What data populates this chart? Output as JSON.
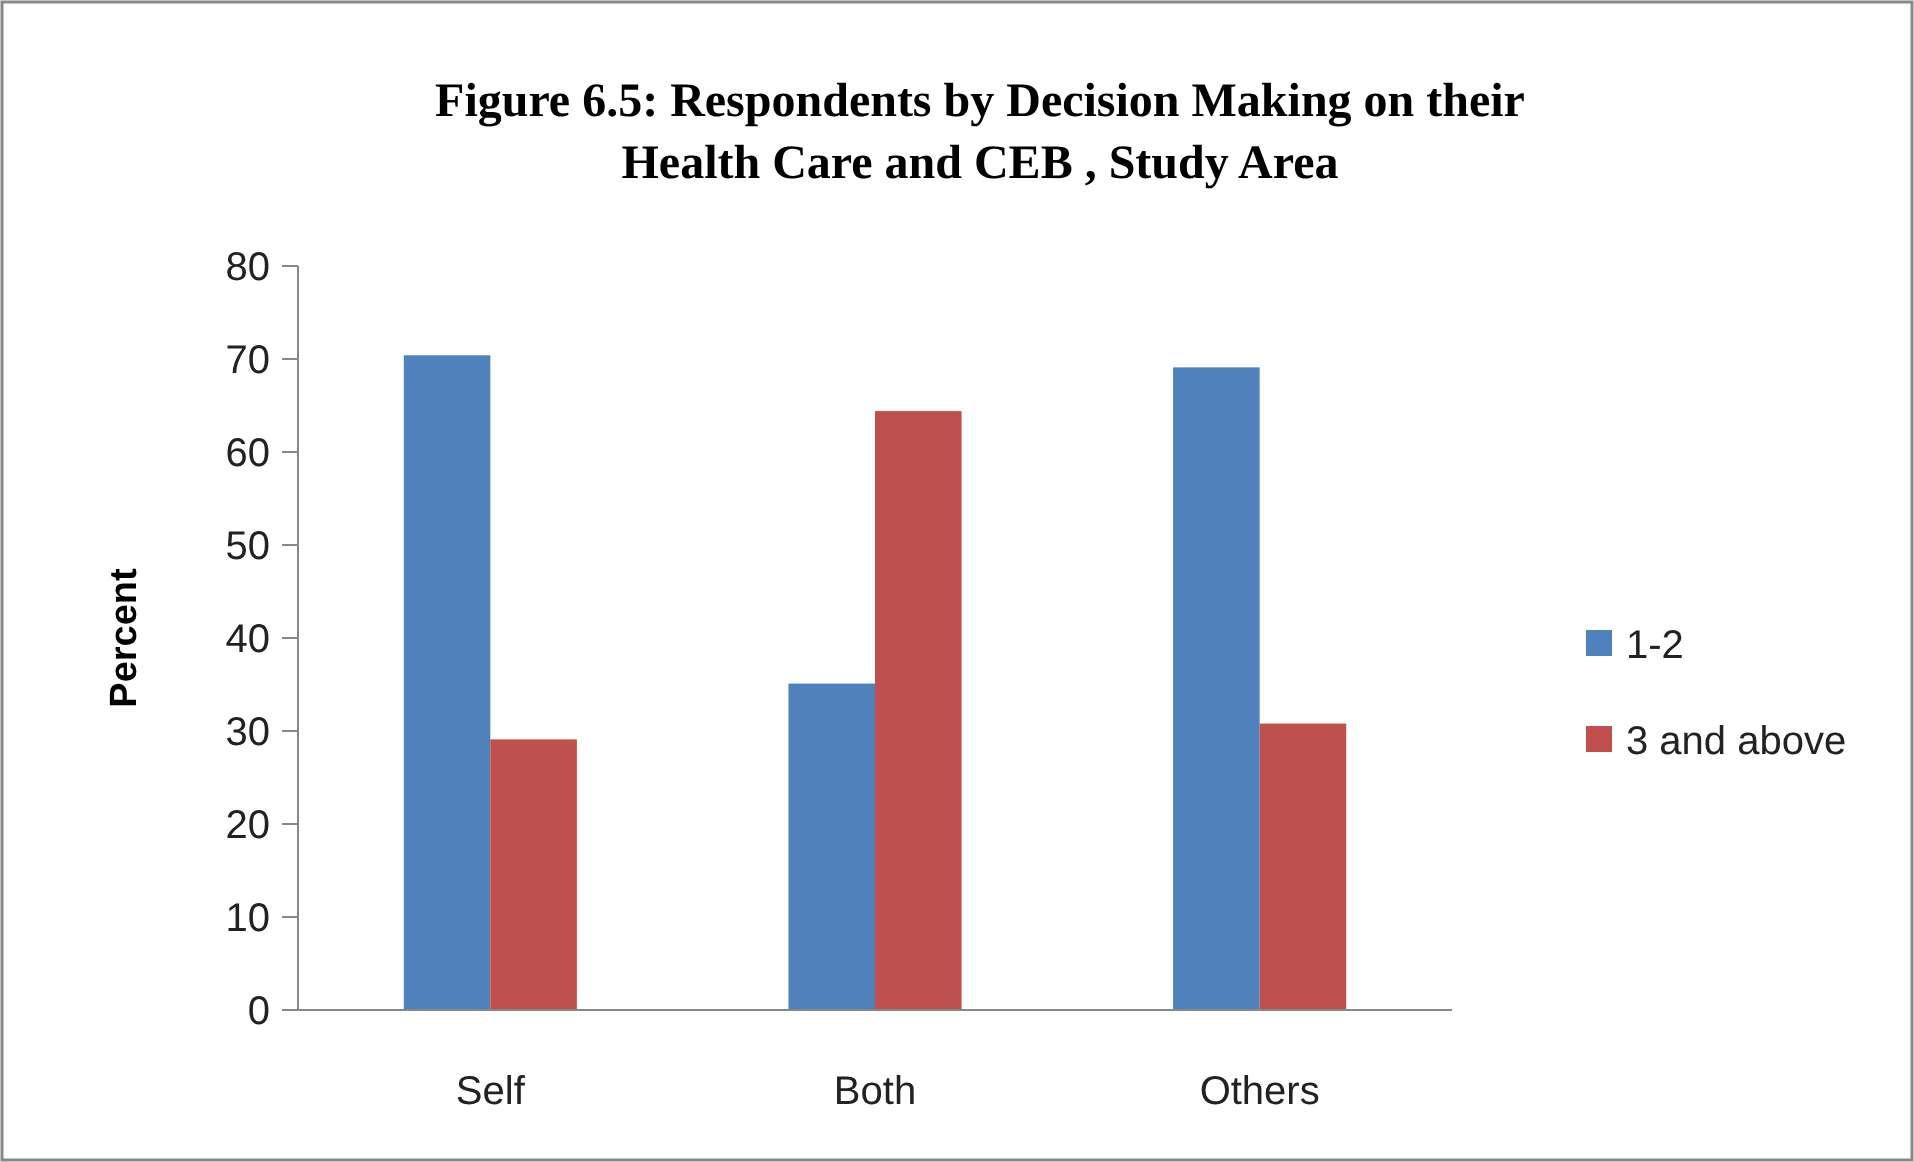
{
  "chart_data": {
    "type": "bar",
    "title": "Figure 6.5: Respondents by Decision Making  on their Health Care and CEB , Study Area",
    "ylabel": "Percent",
    "categories": [
      "Self",
      "Both",
      "Others"
    ],
    "series": [
      {
        "name": "1-2",
        "color": "#4f81bd",
        "values": [
          70.4,
          35.1,
          69.1
        ]
      },
      {
        "name": "3 and above",
        "color": "#c0504d",
        "values": [
          29.1,
          64.4,
          30.8
        ]
      }
    ],
    "ylim": [
      0,
      80
    ],
    "yticks": [
      0,
      10,
      20,
      30,
      40,
      50,
      60,
      70,
      80
    ],
    "grid": false,
    "legend": "right"
  }
}
